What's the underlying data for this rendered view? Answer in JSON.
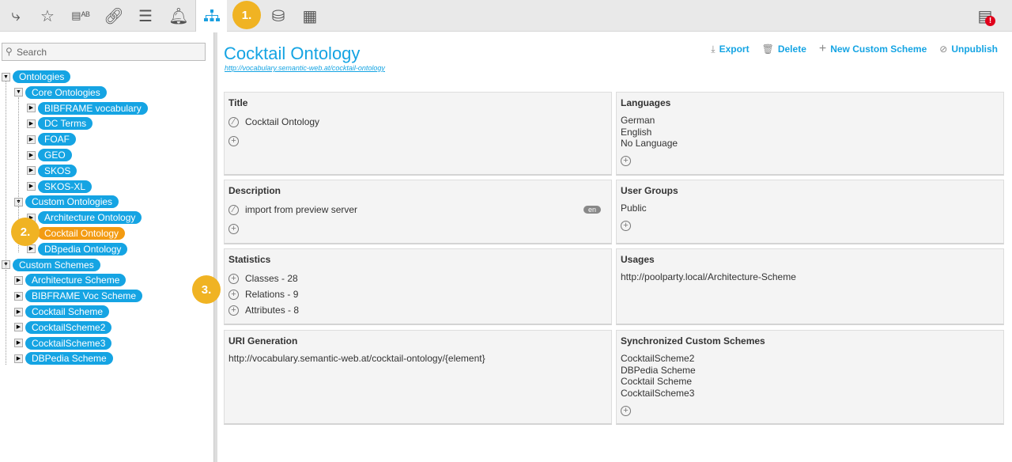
{
  "toolbar": {
    "icons": [
      "hierarchy-icon",
      "starred-document-icon",
      "document-ab-icon",
      "link-icon",
      "list-icon",
      "bell-icon",
      "org-chart-icon",
      "database-icon",
      "server-cloud-icon"
    ],
    "active": "org-chart-icon",
    "alert_icon": "server-alert-icon",
    "badge1": "1."
  },
  "sidebar": {
    "search_placeholder": "Search",
    "badge2": "2.",
    "tree": [
      {
        "label": "Ontologies",
        "depth": 0,
        "open": true
      },
      {
        "label": "Core Ontologies",
        "depth": 1,
        "open": true
      },
      {
        "label": "BIBFRAME vocabulary",
        "depth": 2
      },
      {
        "label": "DC Terms",
        "depth": 2
      },
      {
        "label": "FOAF",
        "depth": 2
      },
      {
        "label": "GEO",
        "depth": 2
      },
      {
        "label": "SKOS",
        "depth": 2
      },
      {
        "label": "SKOS-XL",
        "depth": 2
      },
      {
        "label": "Custom Ontologies",
        "depth": 1,
        "open": true
      },
      {
        "label": "Architecture Ontology",
        "depth": 2
      },
      {
        "label": "Cocktail Ontology",
        "depth": 2,
        "selected": true
      },
      {
        "label": "DBpedia Ontology",
        "depth": 2
      },
      {
        "label": "Custom Schemes",
        "depth": 0,
        "open": true
      },
      {
        "label": "Architecture Scheme",
        "depth": 1
      },
      {
        "label": "BIBFRAME Voc Scheme",
        "depth": 1
      },
      {
        "label": "Cocktail Scheme",
        "depth": 1
      },
      {
        "label": "CocktailScheme2",
        "depth": 1
      },
      {
        "label": "CocktailScheme3",
        "depth": 1
      },
      {
        "label": "DBPedia Scheme",
        "depth": 1
      }
    ]
  },
  "main": {
    "title": "Cocktail Ontology",
    "uri": "http://vocabulary.semantic-web.at/cocktail-ontology",
    "actions": {
      "export": "Export",
      "delete": "Delete",
      "new_scheme": "New Custom Scheme",
      "unpublish": "Unpublish"
    },
    "badge3": "3.",
    "title_panel": {
      "heading": "Title",
      "value": "Cocktail Ontology"
    },
    "description": {
      "heading": "Description",
      "value": "import from preview server",
      "lang": "en"
    },
    "statistics": {
      "heading": "Statistics",
      "items": [
        "Classes - 28",
        "Relations - 9",
        "Attributes - 8"
      ]
    },
    "uri_generation": {
      "heading": "URI Generation",
      "value": "http://vocabulary.semantic-web.at/cocktail-ontology/{element}"
    },
    "languages": {
      "heading": "Languages",
      "items": [
        "German",
        "English",
        "No Language"
      ]
    },
    "user_groups": {
      "heading": "User Groups",
      "items": [
        "Public"
      ]
    },
    "usages": {
      "heading": "Usages",
      "items": [
        "http://poolparty.local/Architecture-Scheme"
      ]
    },
    "synced": {
      "heading": "Synchronized Custom Schemes",
      "items": [
        "CocktailScheme2",
        "DBPedia Scheme",
        "Cocktail Scheme",
        "CocktailScheme3"
      ]
    }
  }
}
